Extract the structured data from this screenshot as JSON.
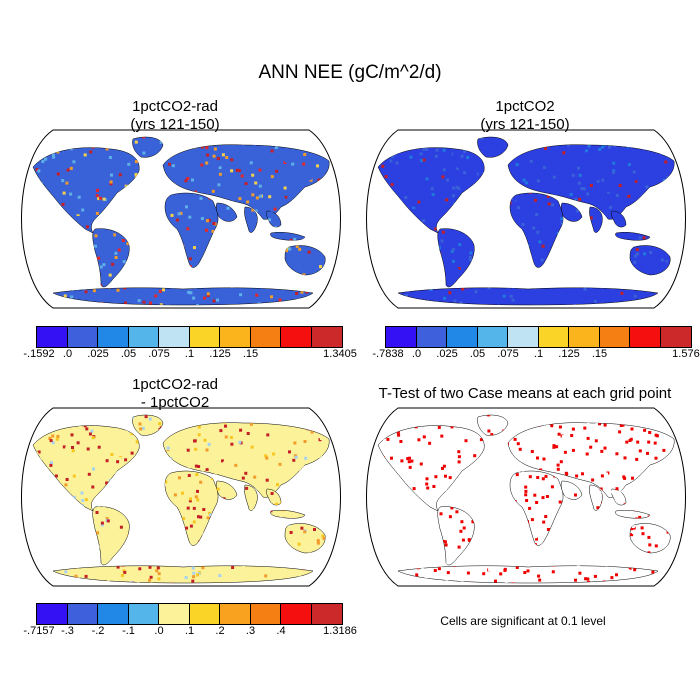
{
  "figure": {
    "main_title": "ANN NEE (gC/m^2/d)"
  },
  "panels": [
    {
      "title_line1": "1pctCO2-rad",
      "title_line2": "(yrs 121-150)",
      "base_color": "#3a62d8",
      "palette": [
        "#3a62d8",
        "#3a62d8",
        "#3a62d8",
        "#5fb0e8",
        "#f6d24a",
        "#f29a2a",
        "#e4272a",
        "#c41f27"
      ]
    },
    {
      "title_line1": "1pctCO2",
      "title_line2": "(yrs 121-150)",
      "base_color": "#2c3fe0",
      "palette": [
        "#2c3fe0",
        "#2c3fe0",
        "#3a62d8",
        "#2c3fe0",
        "#1f7be0",
        "#2c3fe0",
        "#3a62d8",
        "#c41f27"
      ]
    },
    {
      "title_line1": "1pctCO2-rad",
      "title_line2": "- 1pctCO2",
      "base_color": "#fbf29a",
      "palette": [
        "#fbf29a",
        "#fbf29a",
        "#f8c61e",
        "#f29a2a",
        "#c41f27",
        "#c41f27",
        "#a8d2ef",
        "#fbf29a"
      ]
    },
    {
      "title_line1": "T-Test of two Case means at each grid point",
      "title_line2": "",
      "base_color": "#ffffff",
      "palette": [
        "#ee0000",
        "#ffffff",
        "#ee0000",
        "#ee0000",
        "#ffffff",
        "#ee0000",
        "#ee0000",
        "#ffffff"
      ]
    }
  ],
  "colorbars": [
    {
      "colors": [
        "#3411f5",
        "#3e60dc",
        "#2288e8",
        "#54b5ea",
        "#bfe3f2",
        "#fbd428",
        "#fbb41c",
        "#f57f13",
        "#f50f0f",
        "#cc2a2a"
      ],
      "labels": [
        "-.1592",
        ".0",
        ".025",
        ".05",
        ".075",
        ".1",
        ".125",
        ".15",
        "1.3405"
      ]
    },
    {
      "colors": [
        "#3411f5",
        "#3e60dc",
        "#2288e8",
        "#54b5ea",
        "#bfe3f2",
        "#fbd428",
        "#fbb41c",
        "#f57f13",
        "#f50f0f",
        "#cc2a2a"
      ],
      "labels": [
        "-.7838",
        ".0",
        ".025",
        ".05",
        ".075",
        ".1",
        ".125",
        ".15",
        "1.5762"
      ]
    },
    {
      "colors": [
        "#3411f5",
        "#3e60dc",
        "#2288e8",
        "#54b5ea",
        "#fbf29a",
        "#fbd428",
        "#f8a220",
        "#f57f13",
        "#f50f0f",
        "#cc2a2a"
      ],
      "labels": [
        "-.7157",
        "-.3",
        "-.2",
        "-.1",
        ".0",
        ".1",
        ".2",
        ".3",
        ".4",
        "1.3186"
      ]
    }
  ],
  "significance_note": "Cells are significant at 0.1 level"
}
